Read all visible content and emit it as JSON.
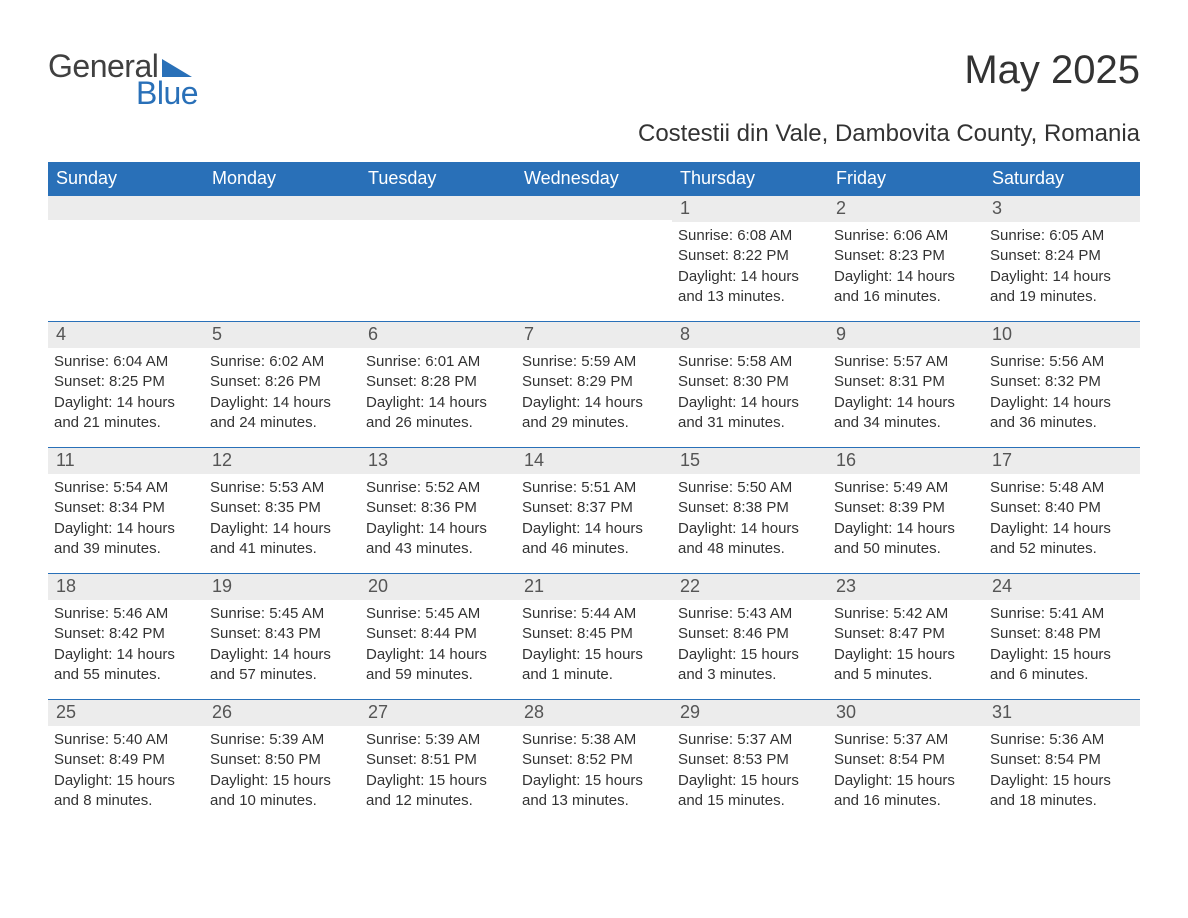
{
  "logo": {
    "text_general": "General",
    "text_blue": "Blue",
    "general_color": "#404040",
    "blue_color": "#2970b8"
  },
  "title": "May 2025",
  "subtitle": "Costestii din Vale, Dambovita County, Romania",
  "colors": {
    "header_bg": "#2970b8",
    "header_text": "#ffffff",
    "date_band_bg": "#ececec",
    "body_text": "#333333",
    "divider": "#2970b8"
  },
  "fonts": {
    "title_size_pt": 40,
    "subtitle_size_pt": 24,
    "dow_size_pt": 18,
    "date_size_pt": 18,
    "body_size_pt": 15
  },
  "days_of_week": [
    "Sunday",
    "Monday",
    "Tuesday",
    "Wednesday",
    "Thursday",
    "Friday",
    "Saturday"
  ],
  "weeks": [
    [
      {
        "date": "",
        "sunrise": "",
        "sunset": "",
        "daylight": ""
      },
      {
        "date": "",
        "sunrise": "",
        "sunset": "",
        "daylight": ""
      },
      {
        "date": "",
        "sunrise": "",
        "sunset": "",
        "daylight": ""
      },
      {
        "date": "",
        "sunrise": "",
        "sunset": "",
        "daylight": ""
      },
      {
        "date": "1",
        "sunrise": "Sunrise: 6:08 AM",
        "sunset": "Sunset: 8:22 PM",
        "daylight": "Daylight: 14 hours and 13 minutes."
      },
      {
        "date": "2",
        "sunrise": "Sunrise: 6:06 AM",
        "sunset": "Sunset: 8:23 PM",
        "daylight": "Daylight: 14 hours and 16 minutes."
      },
      {
        "date": "3",
        "sunrise": "Sunrise: 6:05 AM",
        "sunset": "Sunset: 8:24 PM",
        "daylight": "Daylight: 14 hours and 19 minutes."
      }
    ],
    [
      {
        "date": "4",
        "sunrise": "Sunrise: 6:04 AM",
        "sunset": "Sunset: 8:25 PM",
        "daylight": "Daylight: 14 hours and 21 minutes."
      },
      {
        "date": "5",
        "sunrise": "Sunrise: 6:02 AM",
        "sunset": "Sunset: 8:26 PM",
        "daylight": "Daylight: 14 hours and 24 minutes."
      },
      {
        "date": "6",
        "sunrise": "Sunrise: 6:01 AM",
        "sunset": "Sunset: 8:28 PM",
        "daylight": "Daylight: 14 hours and 26 minutes."
      },
      {
        "date": "7",
        "sunrise": "Sunrise: 5:59 AM",
        "sunset": "Sunset: 8:29 PM",
        "daylight": "Daylight: 14 hours and 29 minutes."
      },
      {
        "date": "8",
        "sunrise": "Sunrise: 5:58 AM",
        "sunset": "Sunset: 8:30 PM",
        "daylight": "Daylight: 14 hours and 31 minutes."
      },
      {
        "date": "9",
        "sunrise": "Sunrise: 5:57 AM",
        "sunset": "Sunset: 8:31 PM",
        "daylight": "Daylight: 14 hours and 34 minutes."
      },
      {
        "date": "10",
        "sunrise": "Sunrise: 5:56 AM",
        "sunset": "Sunset: 8:32 PM",
        "daylight": "Daylight: 14 hours and 36 minutes."
      }
    ],
    [
      {
        "date": "11",
        "sunrise": "Sunrise: 5:54 AM",
        "sunset": "Sunset: 8:34 PM",
        "daylight": "Daylight: 14 hours and 39 minutes."
      },
      {
        "date": "12",
        "sunrise": "Sunrise: 5:53 AM",
        "sunset": "Sunset: 8:35 PM",
        "daylight": "Daylight: 14 hours and 41 minutes."
      },
      {
        "date": "13",
        "sunrise": "Sunrise: 5:52 AM",
        "sunset": "Sunset: 8:36 PM",
        "daylight": "Daylight: 14 hours and 43 minutes."
      },
      {
        "date": "14",
        "sunrise": "Sunrise: 5:51 AM",
        "sunset": "Sunset: 8:37 PM",
        "daylight": "Daylight: 14 hours and 46 minutes."
      },
      {
        "date": "15",
        "sunrise": "Sunrise: 5:50 AM",
        "sunset": "Sunset: 8:38 PM",
        "daylight": "Daylight: 14 hours and 48 minutes."
      },
      {
        "date": "16",
        "sunrise": "Sunrise: 5:49 AM",
        "sunset": "Sunset: 8:39 PM",
        "daylight": "Daylight: 14 hours and 50 minutes."
      },
      {
        "date": "17",
        "sunrise": "Sunrise: 5:48 AM",
        "sunset": "Sunset: 8:40 PM",
        "daylight": "Daylight: 14 hours and 52 minutes."
      }
    ],
    [
      {
        "date": "18",
        "sunrise": "Sunrise: 5:46 AM",
        "sunset": "Sunset: 8:42 PM",
        "daylight": "Daylight: 14 hours and 55 minutes."
      },
      {
        "date": "19",
        "sunrise": "Sunrise: 5:45 AM",
        "sunset": "Sunset: 8:43 PM",
        "daylight": "Daylight: 14 hours and 57 minutes."
      },
      {
        "date": "20",
        "sunrise": "Sunrise: 5:45 AM",
        "sunset": "Sunset: 8:44 PM",
        "daylight": "Daylight: 14 hours and 59 minutes."
      },
      {
        "date": "21",
        "sunrise": "Sunrise: 5:44 AM",
        "sunset": "Sunset: 8:45 PM",
        "daylight": "Daylight: 15 hours and 1 minute."
      },
      {
        "date": "22",
        "sunrise": "Sunrise: 5:43 AM",
        "sunset": "Sunset: 8:46 PM",
        "daylight": "Daylight: 15 hours and 3 minutes."
      },
      {
        "date": "23",
        "sunrise": "Sunrise: 5:42 AM",
        "sunset": "Sunset: 8:47 PM",
        "daylight": "Daylight: 15 hours and 5 minutes."
      },
      {
        "date": "24",
        "sunrise": "Sunrise: 5:41 AM",
        "sunset": "Sunset: 8:48 PM",
        "daylight": "Daylight: 15 hours and 6 minutes."
      }
    ],
    [
      {
        "date": "25",
        "sunrise": "Sunrise: 5:40 AM",
        "sunset": "Sunset: 8:49 PM",
        "daylight": "Daylight: 15 hours and 8 minutes."
      },
      {
        "date": "26",
        "sunrise": "Sunrise: 5:39 AM",
        "sunset": "Sunset: 8:50 PM",
        "daylight": "Daylight: 15 hours and 10 minutes."
      },
      {
        "date": "27",
        "sunrise": "Sunrise: 5:39 AM",
        "sunset": "Sunset: 8:51 PM",
        "daylight": "Daylight: 15 hours and 12 minutes."
      },
      {
        "date": "28",
        "sunrise": "Sunrise: 5:38 AM",
        "sunset": "Sunset: 8:52 PM",
        "daylight": "Daylight: 15 hours and 13 minutes."
      },
      {
        "date": "29",
        "sunrise": "Sunrise: 5:37 AM",
        "sunset": "Sunset: 8:53 PM",
        "daylight": "Daylight: 15 hours and 15 minutes."
      },
      {
        "date": "30",
        "sunrise": "Sunrise: 5:37 AM",
        "sunset": "Sunset: 8:54 PM",
        "daylight": "Daylight: 15 hours and 16 minutes."
      },
      {
        "date": "31",
        "sunrise": "Sunrise: 5:36 AM",
        "sunset": "Sunset: 8:54 PM",
        "daylight": "Daylight: 15 hours and 18 minutes."
      }
    ]
  ]
}
